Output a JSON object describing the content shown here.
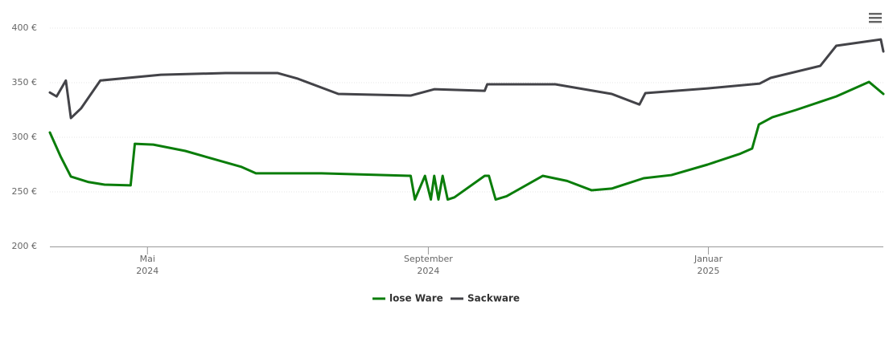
{
  "chart_data": {
    "type": "line",
    "xlim": [
      2024.217,
      2025.208
    ],
    "xticks": [
      {
        "value": 2024.333,
        "label": [
          "Mai",
          "2024"
        ]
      },
      {
        "value": 2024.667,
        "label": [
          "September",
          "2024"
        ]
      },
      {
        "value": 2025.0,
        "label": [
          "Januar",
          "2025"
        ]
      }
    ],
    "ylim": [
      200,
      400
    ],
    "yticks": [
      {
        "value": 200,
        "label": "200 €"
      },
      {
        "value": 250,
        "label": "250 €"
      },
      {
        "value": 300,
        "label": "300 €"
      },
      {
        "value": 350,
        "label": "350 €"
      },
      {
        "value": 400,
        "label": "400 €"
      }
    ],
    "grid": true,
    "legend": "bottom",
    "series": [
      {
        "name": "lose Ware",
        "color": "#0a7d0a",
        "x": [
          2024.217,
          2024.23,
          2024.242,
          2024.263,
          2024.282,
          2024.313,
          2024.318,
          2024.34,
          2024.378,
          2024.445,
          2024.462,
          2024.54,
          2024.646,
          2024.651,
          2024.663,
          2024.67,
          2024.674,
          2024.679,
          2024.684,
          2024.69,
          2024.698,
          2024.734,
          2024.739,
          2024.747,
          2024.76,
          2024.803,
          2024.832,
          2024.861,
          2024.885,
          2024.923,
          2024.956,
          2024.999,
          2025.038,
          2025.052,
          2025.06,
          2025.076,
          2025.104,
          2025.152,
          2025.191,
          2025.208
        ],
        "values": [
          304.4,
          282,
          264,
          259,
          256.6,
          256,
          294,
          293.3,
          287.5,
          272.8,
          267,
          267,
          264.7,
          243,
          264.7,
          243,
          264.7,
          243,
          264.7,
          243,
          245,
          264.7,
          264.7,
          243,
          246,
          264.7,
          260,
          251.5,
          253,
          262.5,
          265.4,
          275,
          285,
          289.7,
          311.7,
          318.3,
          325,
          337.4,
          350.7,
          339.7
        ]
      },
      {
        "name": "Sackware",
        "color": "#434348",
        "x": [
          2024.217,
          2024.225,
          2024.236,
          2024.242,
          2024.254,
          2024.277,
          2024.349,
          2024.426,
          2024.488,
          2024.512,
          2024.56,
          2024.646,
          2024.674,
          2024.734,
          2024.737,
          2024.818,
          2024.885,
          2024.918,
          2024.925,
          2024.999,
          2025.061,
          2025.074,
          2025.133,
          2025.152,
          2025.205,
          2025.208
        ],
        "values": [
          341,
          337.4,
          352,
          317.6,
          326.4,
          352,
          357.3,
          358.8,
          358.8,
          353.6,
          339.7,
          338.2,
          344,
          342.6,
          348.5,
          348.5,
          339.7,
          330,
          340.4,
          344.8,
          349.2,
          354.4,
          365.4,
          383.8,
          389.6,
          378.6
        ]
      }
    ]
  }
}
